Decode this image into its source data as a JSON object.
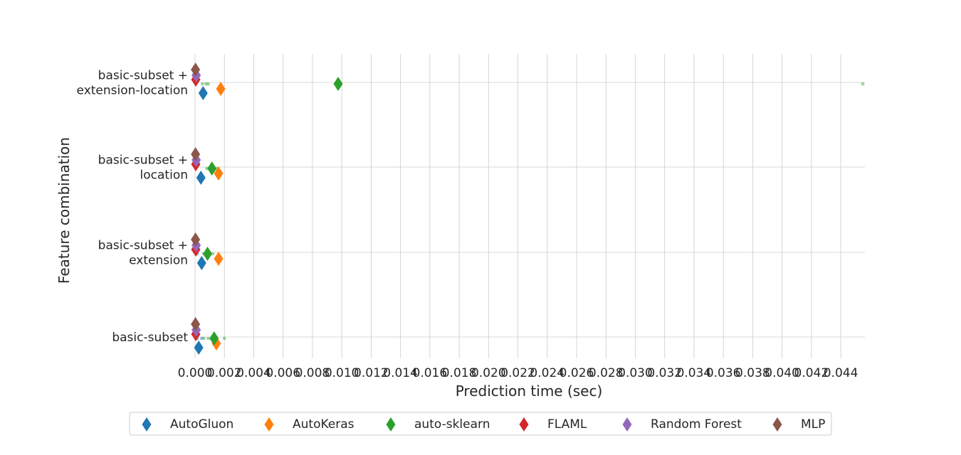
{
  "chart_data": {
    "type": "scatter",
    "orientation": "horizontal",
    "xlabel": "Prediction time (sec)",
    "ylabel": "Feature combination",
    "xlim": [
      0.0,
      0.0455
    ],
    "x_ticks": [
      "0.000",
      "0.002",
      "0.004",
      "0.006",
      "0.008",
      "0.010",
      "0.012",
      "0.014",
      "0.016",
      "0.018",
      "0.020",
      "0.022",
      "0.024",
      "0.026",
      "0.028",
      "0.030",
      "0.032",
      "0.034",
      "0.036",
      "0.038",
      "0.040",
      "0.042",
      "0.044"
    ],
    "grid": true,
    "legend_position": "bottom",
    "categories": [
      {
        "label_lines": [
          "basic-subset +",
          "extension-location"
        ]
      },
      {
        "label_lines": [
          "basic-subset +",
          "location"
        ]
      },
      {
        "label_lines": [
          "basic-subset +",
          "extension"
        ]
      },
      {
        "label_lines": [
          "basic-subset"
        ]
      }
    ],
    "series": [
      {
        "name": "AutoGluon",
        "color": "#1f77b4",
        "values": [
          0.00055,
          0.0004,
          0.00045,
          0.00025
        ]
      },
      {
        "name": "AutoKeras",
        "color": "#ff7f0e",
        "values": [
          0.00175,
          0.0016,
          0.0016,
          0.00145
        ]
      },
      {
        "name": "auto-sklearn",
        "color": "#2ca02c",
        "values": [
          0.00975,
          0.00115,
          0.00085,
          0.0013
        ]
      },
      {
        "name": "FLAML",
        "color": "#d62728",
        "values": [
          5e-05,
          5e-05,
          5e-05,
          5e-05
        ]
      },
      {
        "name": "Random Forest",
        "color": "#9467bd",
        "values": [
          8e-05,
          8e-05,
          8e-05,
          8e-05
        ]
      },
      {
        "name": "MLP",
        "color": "#8c564b",
        "values": [
          3e-05,
          3e-05,
          3e-05,
          3e-05
        ]
      }
    ],
    "raw_points": [
      {
        "series": "auto-sklearn",
        "category": 0,
        "values": [
          0.0005,
          0.00075,
          0.0009,
          0.0455
        ]
      },
      {
        "series": "auto-sklearn",
        "category": 1,
        "values": [
          0.0008,
          0.0011,
          0.0015
        ]
      },
      {
        "series": "auto-sklearn",
        "category": 2,
        "values": [
          0.0007,
          0.001,
          0.0012
        ]
      },
      {
        "series": "auto-sklearn",
        "category": 3,
        "values": [
          0.0006,
          0.0009,
          0.002
        ]
      },
      {
        "series": "AutoGluon",
        "category": 2,
        "values": [
          0.00015,
          0.0006
        ]
      },
      {
        "series": "AutoGluon",
        "category": 3,
        "values": [
          0.00015,
          0.00045
        ]
      }
    ]
  }
}
